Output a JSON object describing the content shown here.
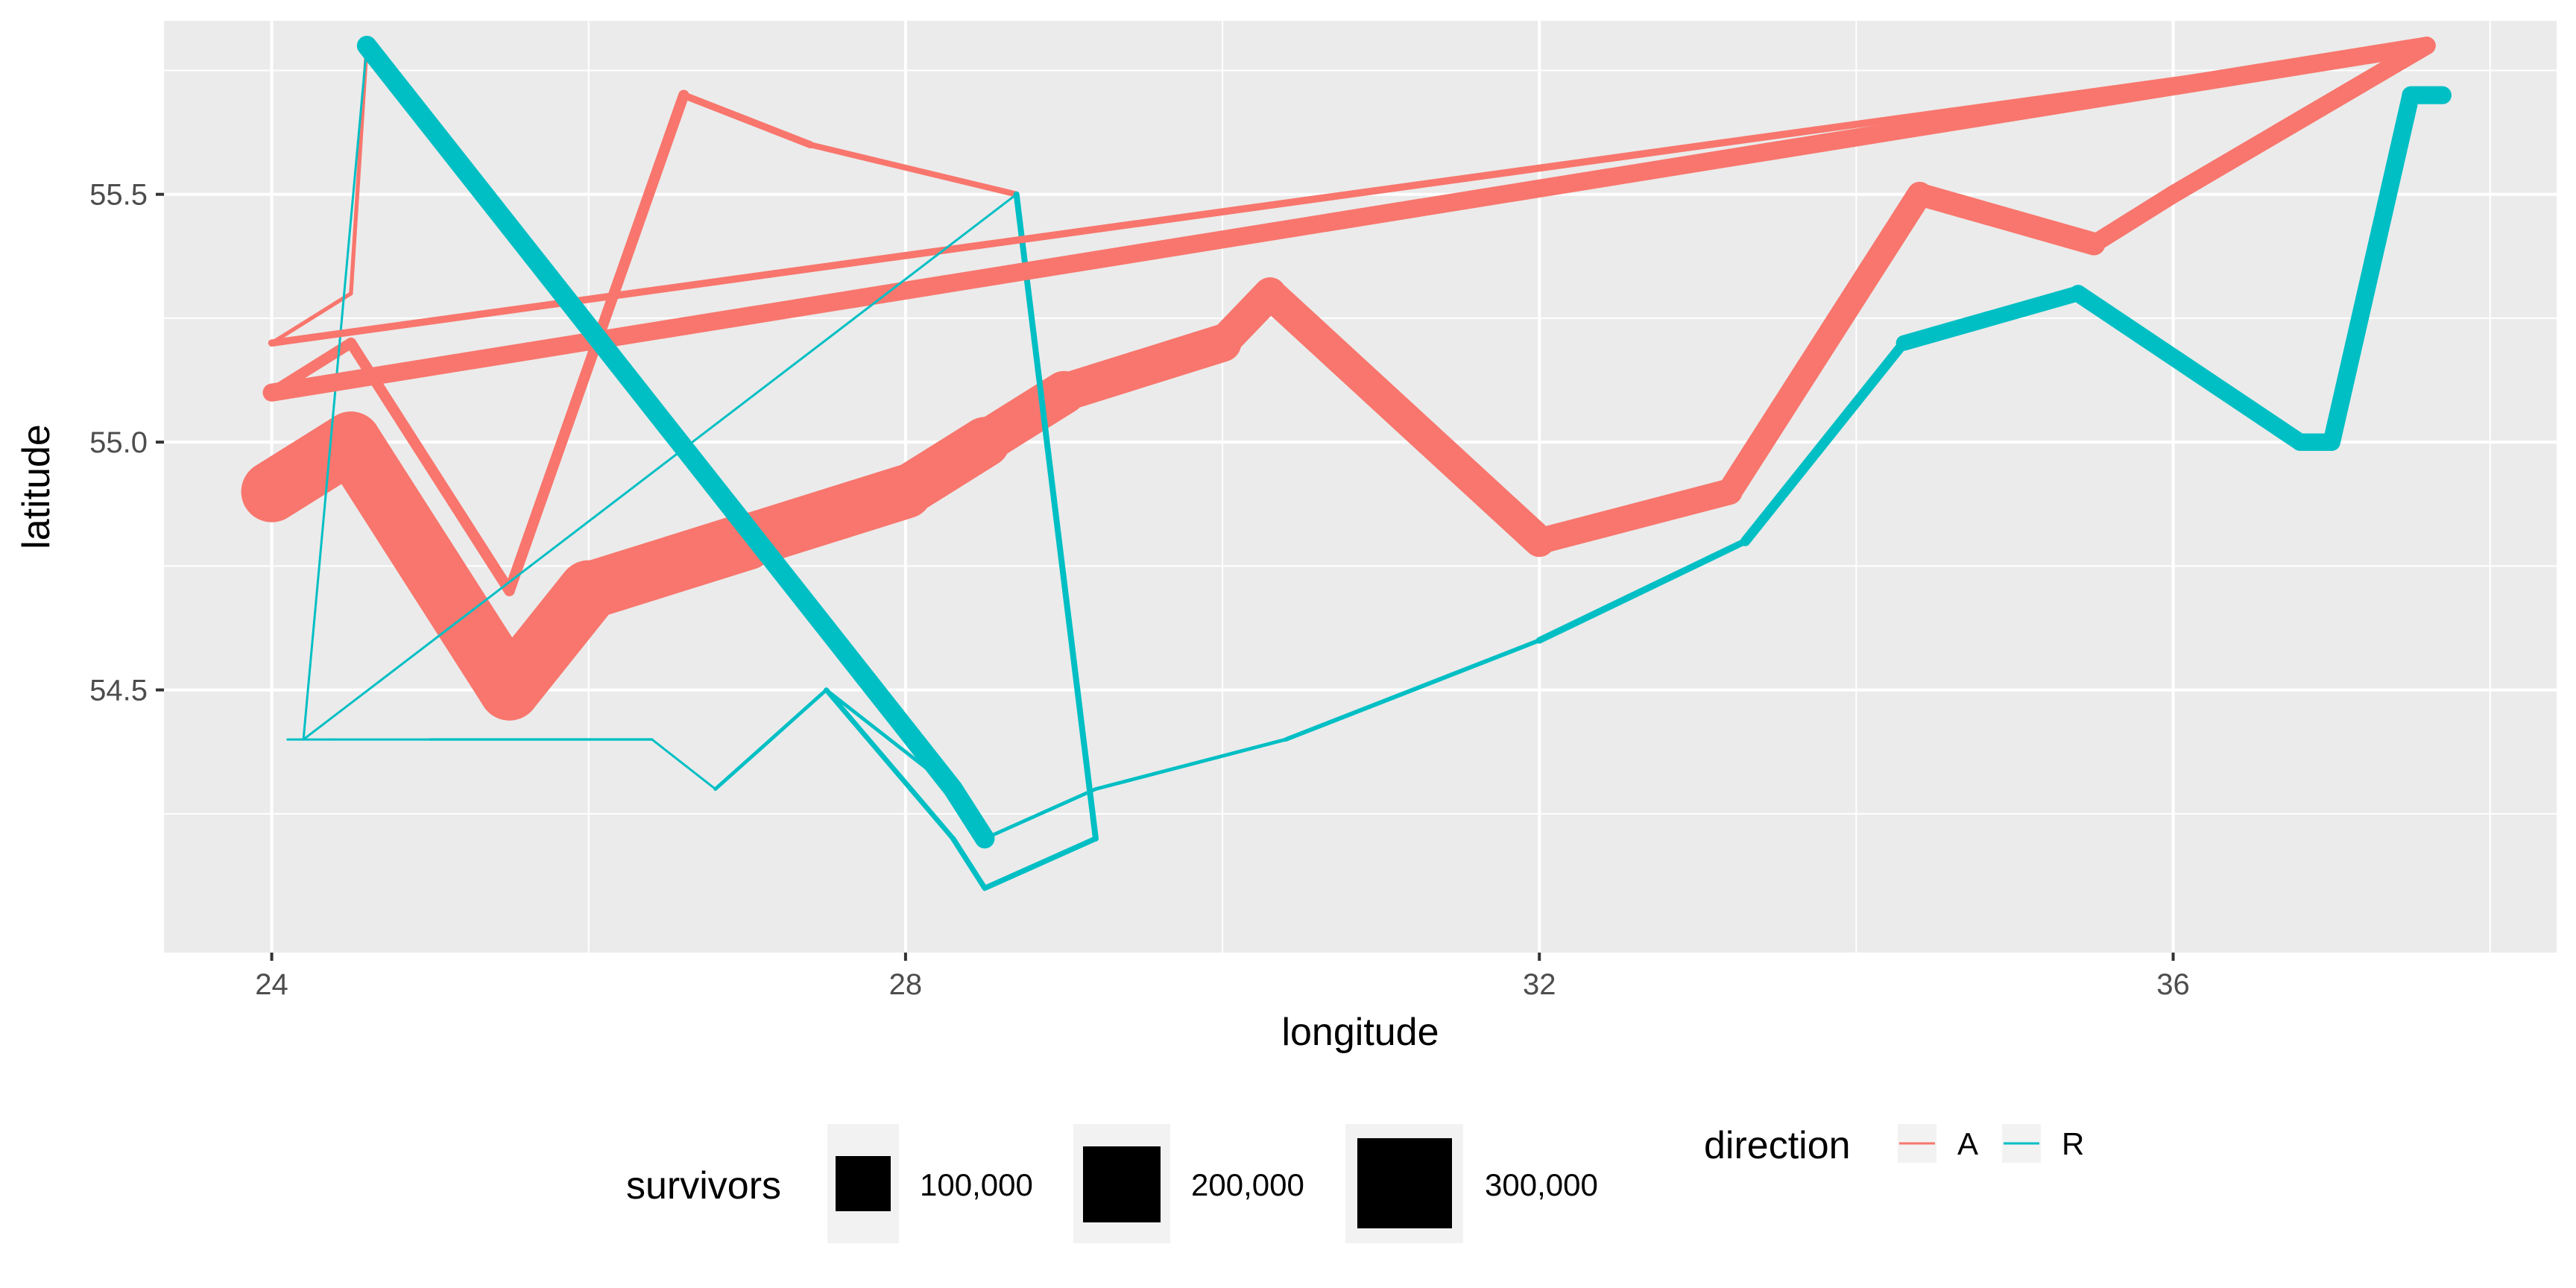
{
  "chart_data": {
    "type": "line",
    "xlabel": "longitude",
    "ylabel": "latitude",
    "xlim": [
      23.32,
      38.42
    ],
    "ylim": [
      53.97,
      55.85
    ],
    "x_ticks": [
      24,
      28,
      32,
      36
    ],
    "y_ticks": [
      54.5,
      55.0,
      55.5
    ],
    "x_tick_labels": [
      "24",
      "28",
      "32",
      "36"
    ],
    "y_tick_labels": [
      "54.5",
      "55.0",
      "55.5"
    ],
    "grid": true,
    "legend_placement": "bottom",
    "colors": {
      "A": "#F8766D",
      "R": "#00BFC4"
    },
    "size_legend": {
      "title": "survivors",
      "values": [
        100000,
        200000,
        300000
      ],
      "labels": [
        "100,000",
        "200,000",
        "300,000"
      ]
    },
    "color_legend": {
      "title": "direction",
      "entries": [
        "A",
        "R"
      ]
    },
    "series": [
      {
        "direction": "A",
        "group": 1,
        "points": [
          {
            "x": 24.0,
            "y": 54.9,
            "survivors": 340000
          },
          {
            "x": 24.5,
            "y": 55.0,
            "survivors": 340000
          },
          {
            "x": 25.5,
            "y": 54.5,
            "survivors": 340000
          },
          {
            "x": 26.0,
            "y": 54.7,
            "survivors": 320000
          },
          {
            "x": 27.0,
            "y": 54.8,
            "survivors": 300000
          },
          {
            "x": 28.0,
            "y": 54.9,
            "survivors": 280000
          },
          {
            "x": 28.5,
            "y": 55.0,
            "survivors": 240000
          },
          {
            "x": 29.0,
            "y": 55.1,
            "survivors": 210000
          },
          {
            "x": 30.0,
            "y": 55.2,
            "survivors": 180000
          },
          {
            "x": 30.3,
            "y": 55.3,
            "survivors": 175000
          },
          {
            "x": 32.0,
            "y": 54.8,
            "survivors": 145000
          },
          {
            "x": 33.2,
            "y": 54.9,
            "survivors": 140000
          },
          {
            "x": 34.4,
            "y": 55.5,
            "survivors": 127100
          },
          {
            "x": 35.5,
            "y": 55.4,
            "survivors": 100000
          },
          {
            "x": 36.0,
            "y": 55.5,
            "survivors": 100000
          },
          {
            "x": 37.6,
            "y": 55.8,
            "survivors": 100000
          }
        ]
      },
      {
        "direction": "R",
        "group": 1,
        "points": [
          {
            "x": 37.7,
            "y": 55.7,
            "survivors": 100000
          },
          {
            "x": 37.5,
            "y": 55.7,
            "survivors": 98000
          },
          {
            "x": 37.0,
            "y": 55.0,
            "survivors": 97000
          },
          {
            "x": 36.8,
            "y": 55.0,
            "survivors": 96000
          },
          {
            "x": 35.4,
            "y": 55.3,
            "survivors": 87000
          },
          {
            "x": 34.3,
            "y": 55.2,
            "survivors": 55000
          },
          {
            "x": 33.3,
            "y": 54.8,
            "survivors": 37000
          },
          {
            "x": 32.0,
            "y": 54.6,
            "survivors": 24000
          },
          {
            "x": 30.4,
            "y": 54.4,
            "survivors": 20000
          },
          {
            "x": 29.2,
            "y": 54.3,
            "survivors": 20000
          },
          {
            "x": 28.5,
            "y": 54.2,
            "survivors": 20000
          },
          {
            "x": 28.3,
            "y": 54.3,
            "survivors": 20000
          },
          {
            "x": 27.5,
            "y": 54.5,
            "survivors": 20000
          },
          {
            "x": 26.8,
            "y": 54.3,
            "survivors": 12000
          },
          {
            "x": 26.4,
            "y": 54.4,
            "survivors": 14000
          },
          {
            "x": 25.0,
            "y": 54.4,
            "survivors": 8000
          },
          {
            "x": 24.4,
            "y": 54.4,
            "survivors": 4000
          },
          {
            "x": 24.2,
            "y": 54.4,
            "survivors": 4000
          },
          {
            "x": 24.1,
            "y": 54.4,
            "survivors": 4000
          }
        ]
      },
      {
        "direction": "A",
        "group": 2,
        "points": [
          {
            "x": 24.0,
            "y": 55.1,
            "survivors": 60000
          },
          {
            "x": 24.5,
            "y": 55.2,
            "survivors": 60000
          },
          {
            "x": 25.5,
            "y": 54.7,
            "survivors": 60000
          },
          {
            "x": 26.6,
            "y": 55.7,
            "survivors": 40000
          },
          {
            "x": 27.4,
            "y": 55.6,
            "survivors": 33000
          },
          {
            "x": 28.7,
            "y": 55.5,
            "survivors": 33000
          }
        ]
      },
      {
        "direction": "R",
        "group": 2,
        "points": [
          {
            "x": 28.7,
            "y": 55.5,
            "survivors": 33000
          },
          {
            "x": 29.2,
            "y": 54.2,
            "survivors": 30000
          },
          {
            "x": 28.5,
            "y": 54.1,
            "survivors": 30000
          },
          {
            "x": 28.3,
            "y": 54.2,
            "survivors": 28000
          },
          {
            "x": 27.5,
            "y": 54.5,
            "survivors": 20000
          }
        ]
      },
      {
        "direction": "A",
        "group": 3,
        "points": [
          {
            "x": 24.0,
            "y": 55.2,
            "survivors": 22000
          },
          {
            "x": 24.5,
            "y": 55.3,
            "survivors": 22000
          },
          {
            "x": 24.6,
            "y": 55.8,
            "survivors": 6000
          }
        ]
      },
      {
        "direction": "R",
        "group": 3,
        "points": [
          {
            "x": 24.6,
            "y": 55.8,
            "survivors": 6000
          },
          {
            "x": 24.2,
            "y": 54.4,
            "survivors": 6000
          }
        ]
      },
      {
        "direction": "A",
        "group": 4,
        "points": [
          {
            "x": 24.0,
            "y": 55.1,
            "survivors": 100000
          },
          {
            "x": 37.6,
            "y": 55.8,
            "survivors": 100000
          }
        ]
      },
      {
        "direction": "A",
        "group": 5,
        "points": [
          {
            "x": 24.0,
            "y": 55.2,
            "survivors": 40000
          },
          {
            "x": 37.6,
            "y": 55.8,
            "survivors": 40000
          }
        ]
      },
      {
        "direction": "R",
        "group": 6,
        "points": [
          {
            "x": 24.6,
            "y": 55.8,
            "survivors": 110000
          },
          {
            "x": 28.3,
            "y": 54.3,
            "survivors": 110000
          },
          {
            "x": 28.5,
            "y": 54.2,
            "survivors": 20000
          }
        ]
      },
      {
        "direction": "R",
        "group": 7,
        "points": [
          {
            "x": 28.7,
            "y": 55.5,
            "survivors": 4000
          },
          {
            "x": 24.2,
            "y": 54.4,
            "survivors": 4000
          }
        ]
      }
    ]
  }
}
